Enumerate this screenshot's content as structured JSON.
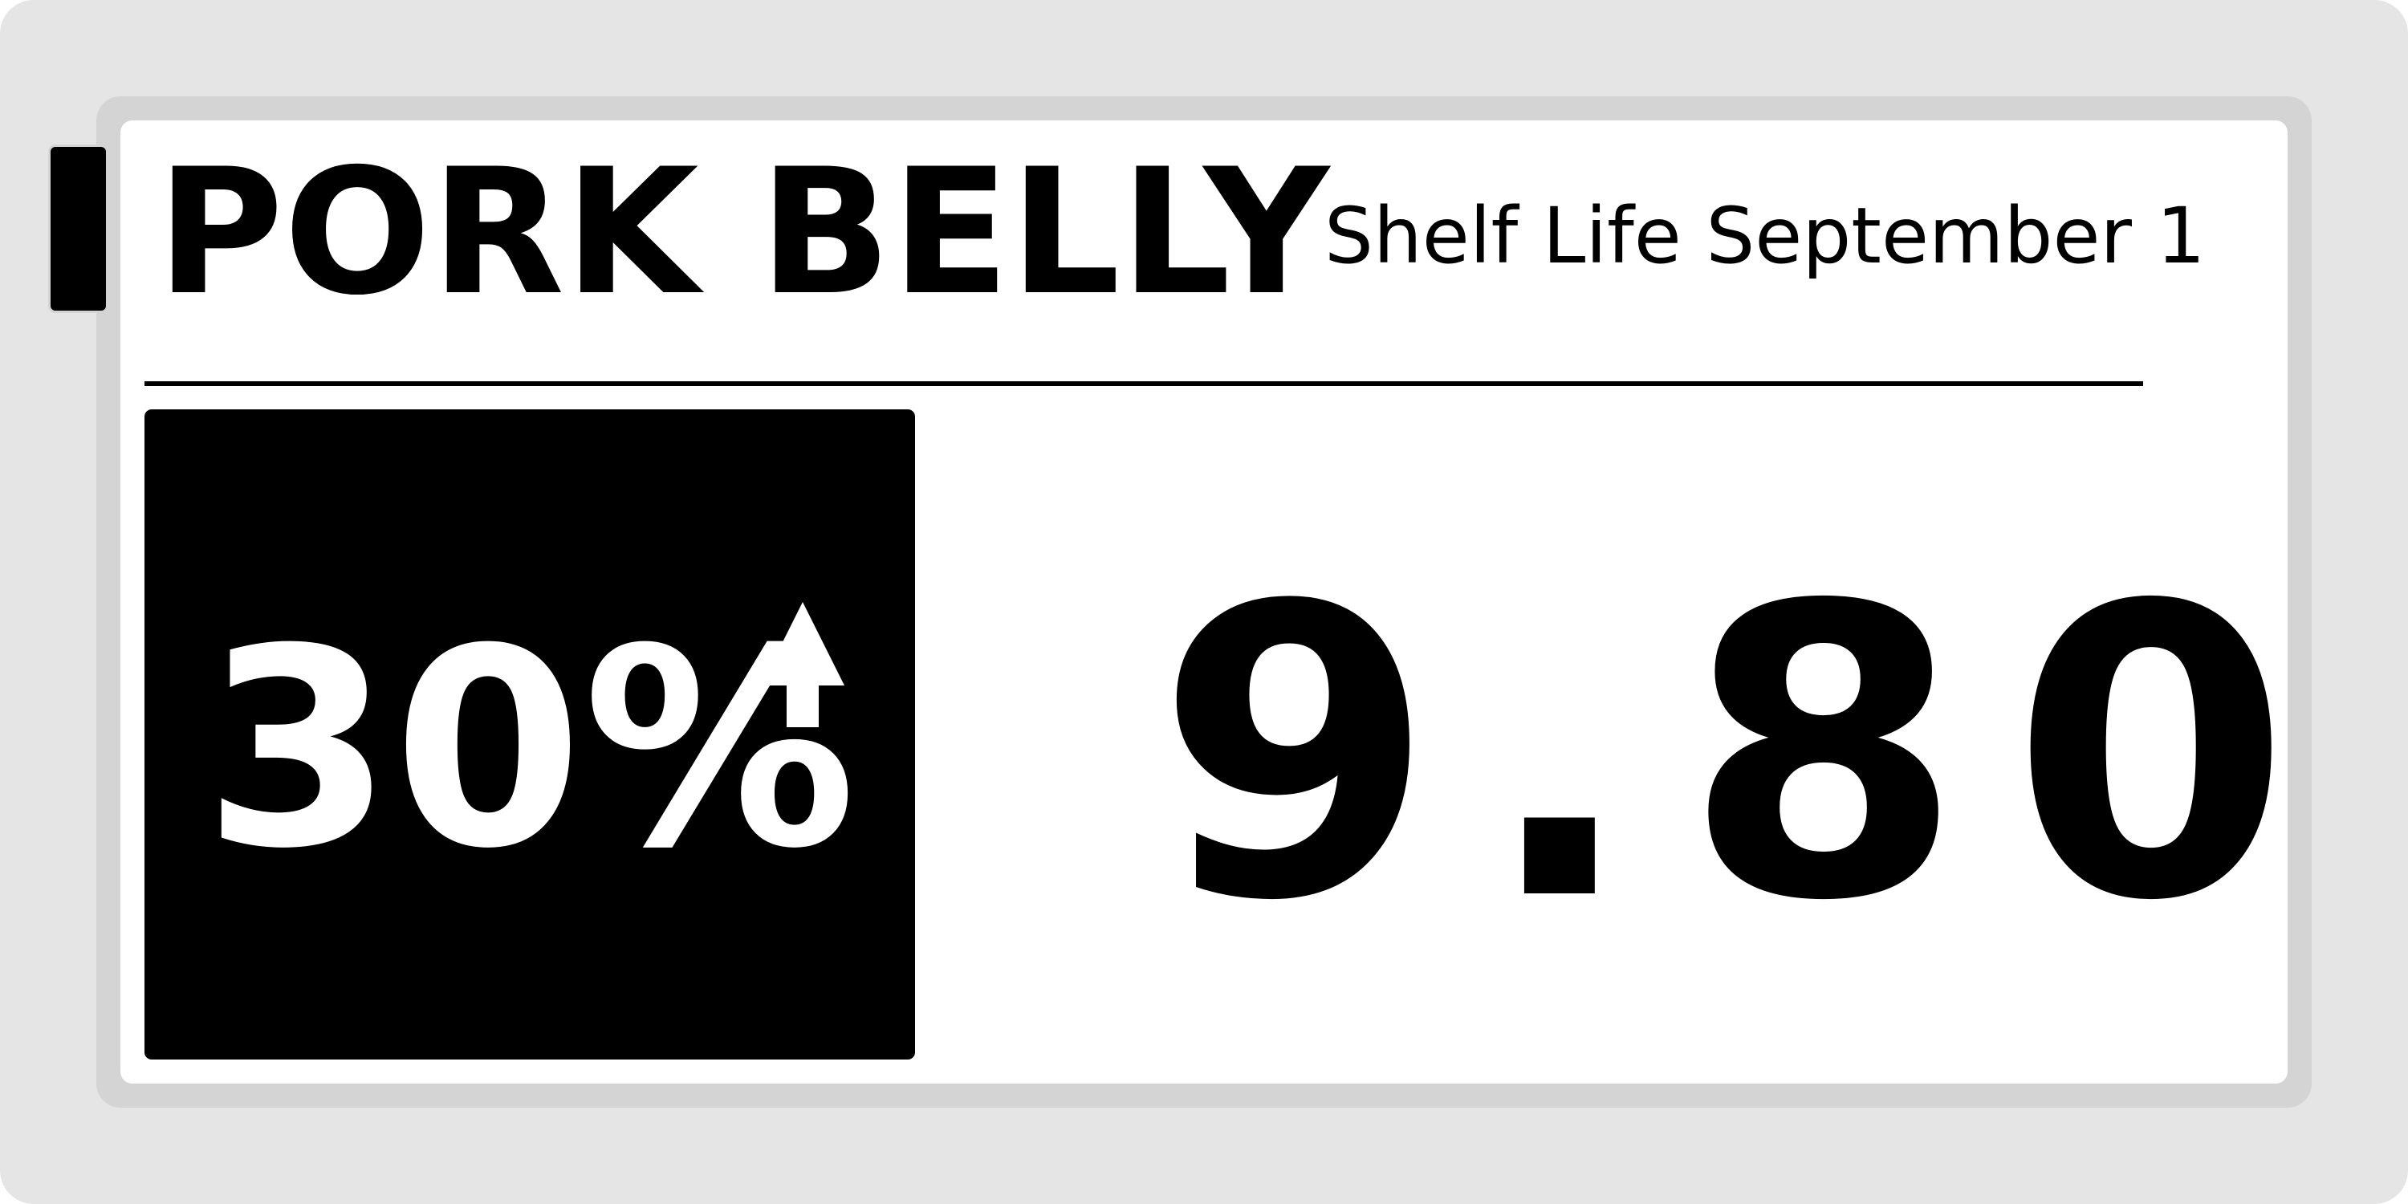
{
  "product": {
    "name": "PORK BELLY",
    "shelf_life": "Shelf Life September 1"
  },
  "promo": {
    "discount": "30%",
    "icon": "up-arrow-icon"
  },
  "price": {
    "amount": "9.80"
  },
  "colors": {
    "frame": "#e5e5e5",
    "bezel": "#d4d4d4",
    "screen": "#ffffff",
    "ink": "#000000",
    "badge_text": "#ffffff"
  }
}
